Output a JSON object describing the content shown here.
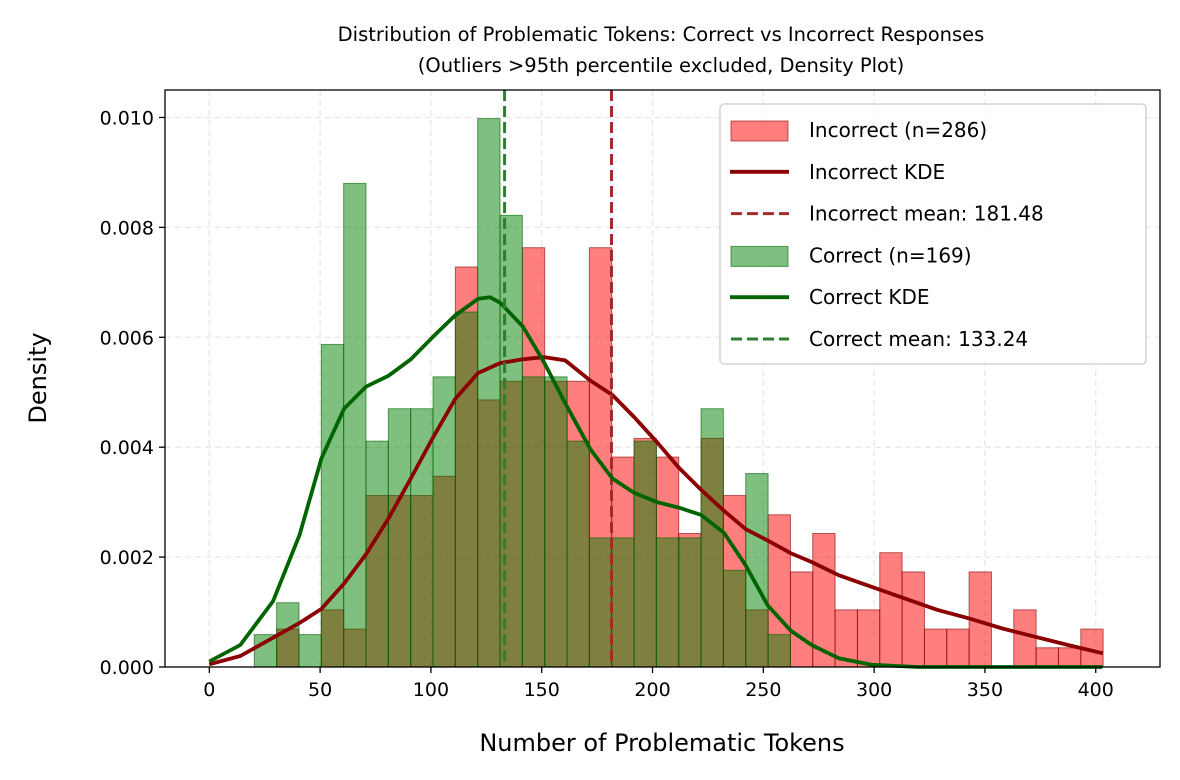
{
  "chart_data": {
    "type": "histogram-density",
    "title": "Distribution of Problematic Tokens: Correct vs Incorrect Responses",
    "subtitle": "(Outliers >95th percentile excluded, Density Plot)",
    "xlabel": "Number of Problematic Tokens",
    "ylabel": "Density",
    "xlim": [
      -20,
      429
    ],
    "ylim": [
      0,
      0.0105
    ],
    "xticks": [
      "0",
      "50",
      "100",
      "150",
      "200",
      "250",
      "300",
      "350",
      "400"
    ],
    "yticks": [
      "0.000",
      "0.002",
      "0.004",
      "0.006",
      "0.008",
      "0.010"
    ],
    "grid": true,
    "legend_position": "top-right",
    "bin_edges_start": 20.3,
    "bin_width": 10.08,
    "series": [
      {
        "name": "Incorrect (n=286)",
        "kind": "histogram",
        "color": "#ff0000",
        "edge_color": "#8b0000",
        "densities": [
          0,
          0.00069,
          0,
          0.00104,
          0.00069,
          0.00312,
          0.00312,
          0.00312,
          0.00347,
          0.00728,
          0.00486,
          0.0052,
          0.00763,
          0.0052,
          0.0052,
          0.00763,
          0.00382,
          0.00416,
          0.00382,
          0.00243,
          0.00416,
          0.00312,
          0.00104,
          0.00277,
          0.00173,
          0.00243,
          0.00104,
          0.00104,
          0.00208,
          0.00173,
          0.00069,
          0.00069,
          0.00173,
          0,
          0.00104,
          0.00035,
          0.00035,
          0.00069
        ]
      },
      {
        "name": "Incorrect KDE",
        "kind": "line",
        "color": "#8b0000",
        "x": [
          0,
          14,
          40.7,
          50.6,
          60.8,
          70.7,
          80.8,
          90.9,
          100.7,
          111,
          121.3,
          131.2,
          141.4,
          151,
          160.6,
          172,
          181.9,
          191.7,
          202,
          211.8,
          221.8,
          232.3,
          242,
          252,
          262.4,
          271.8,
          284,
          298.8,
          313.6,
          328.4,
          343.1,
          357.9,
          372.7,
          387.5,
          403.2
        ],
        "y": [
          5e-05,
          0.0002,
          0.0008,
          0.00106,
          0.00152,
          0.00205,
          0.0027,
          0.00343,
          0.00416,
          0.00488,
          0.00535,
          0.00553,
          0.0056,
          0.00564,
          0.00558,
          0.00521,
          0.00495,
          0.00455,
          0.00409,
          0.00363,
          0.00323,
          0.00284,
          0.00251,
          0.0023,
          0.00207,
          0.00191,
          0.00167,
          0.00146,
          0.00125,
          0.00104,
          0.00088,
          0.0007,
          0.00055,
          0.0004,
          0.00025
        ]
      },
      {
        "name": "Incorrect mean: 181.48",
        "kind": "vline",
        "color": "#a52a2a",
        "value": 181.48
      },
      {
        "name": "Correct (n=169)",
        "kind": "histogram",
        "color": "#008000",
        "edge_color": "#006400",
        "densities": [
          0.00059,
          0.00117,
          0.00059,
          0.00587,
          0.0088,
          0.00411,
          0.0047,
          0.0047,
          0.00528,
          0.00646,
          0.00998,
          0.00822,
          0.00528,
          0.00528,
          0.00411,
          0.00235,
          0.00235,
          0.00411,
          0.00235,
          0.00235,
          0.0047,
          0.00176,
          0.00352,
          0.00059,
          0,
          0,
          0,
          0,
          0,
          0,
          0,
          0,
          0,
          0,
          0,
          0,
          0,
          0
        ]
      },
      {
        "name": "Correct KDE",
        "kind": "line",
        "color": "#006400",
        "x": [
          0,
          14,
          28.8,
          40.7,
          50.6,
          60.8,
          70.7,
          80.8,
          90.9,
          100.7,
          111,
          121.3,
          126.6,
          131.2,
          141.4,
          151,
          160.6,
          172,
          181.9,
          191.7,
          202,
          211.8,
          221.8,
          232.3,
          242,
          252,
          262.4,
          271.8,
          284,
          298.8,
          320,
          360,
          403
        ],
        "y": [
          0.0001,
          0.0004,
          0.0012,
          0.0024,
          0.0038,
          0.0047,
          0.0051,
          0.0053,
          0.0056,
          0.006,
          0.0064,
          0.0067,
          0.00673,
          0.00663,
          0.0062,
          0.00555,
          0.0048,
          0.00396,
          0.00343,
          0.00317,
          0.003,
          0.0029,
          0.00277,
          0.00244,
          0.00185,
          0.00112,
          0.00066,
          0.0004,
          0.00016,
          4e-05,
          0,
          0,
          0
        ]
      },
      {
        "name": "Correct mean: 133.24",
        "kind": "vline",
        "color": "#2e7d32",
        "value": 133.24
      }
    ]
  }
}
